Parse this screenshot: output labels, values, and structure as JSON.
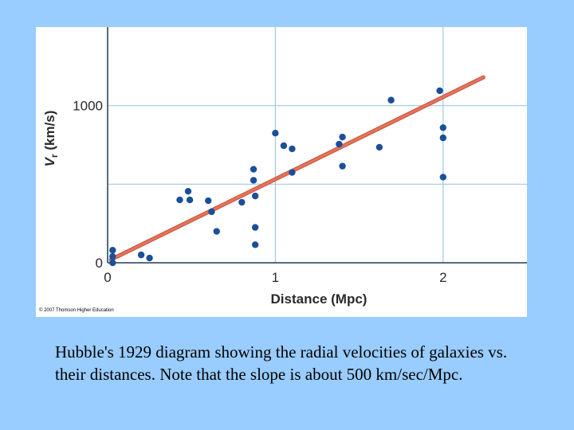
{
  "caption": "Hubble's 1929 diagram showing the radial velocities of galaxies vs. their distances.  Note that the slope is about 500 km/sec/Mpc.",
  "copyright": "© 2007 Thomson Higher Education",
  "colors": {
    "background": "#99ccff",
    "plot_bg": "#ffffff",
    "grid": "#9ec9e0",
    "axis": "#1f3b57",
    "points": "#1a4f99",
    "fit_line": "#e8735a",
    "fit_line_outline": "#c0503a"
  },
  "chart_data": {
    "type": "scatter",
    "xlabel": "Distance (Mpc)",
    "ylabel_main": "V",
    "ylabel_sub": "r",
    "ylabel_unit": " (km/s)",
    "xlim": [
      0,
      2.5
    ],
    "ylim": [
      0,
      1500
    ],
    "x_ticks": [
      0,
      1,
      2
    ],
    "x_tick_labels": [
      "0",
      "1",
      "2"
    ],
    "y_ticks": [
      0,
      1000
    ],
    "y_tick_labels": [
      "0",
      "1000"
    ],
    "grid": true,
    "points": [
      {
        "x": 0.03,
        "y": 80
      },
      {
        "x": 0.03,
        "y": 40
      },
      {
        "x": 0.03,
        "y": 0
      },
      {
        "x": 0.2,
        "y": 50
      },
      {
        "x": 0.25,
        "y": 30
      },
      {
        "x": 0.43,
        "y": 400
      },
      {
        "x": 0.48,
        "y": 455
      },
      {
        "x": 0.49,
        "y": 400
      },
      {
        "x": 0.6,
        "y": 395
      },
      {
        "x": 0.62,
        "y": 325
      },
      {
        "x": 0.65,
        "y": 200
      },
      {
        "x": 0.8,
        "y": 385
      },
      {
        "x": 0.87,
        "y": 595
      },
      {
        "x": 0.87,
        "y": 525
      },
      {
        "x": 0.88,
        "y": 425
      },
      {
        "x": 0.88,
        "y": 225
      },
      {
        "x": 0.88,
        "y": 115
      },
      {
        "x": 1.0,
        "y": 825
      },
      {
        "x": 1.05,
        "y": 745
      },
      {
        "x": 1.1,
        "y": 725
      },
      {
        "x": 1.1,
        "y": 575
      },
      {
        "x": 1.38,
        "y": 755
      },
      {
        "x": 1.4,
        "y": 800
      },
      {
        "x": 1.4,
        "y": 615
      },
      {
        "x": 1.62,
        "y": 735
      },
      {
        "x": 1.69,
        "y": 1035
      },
      {
        "x": 1.98,
        "y": 1095
      },
      {
        "x": 2.0,
        "y": 860
      },
      {
        "x": 2.0,
        "y": 795
      },
      {
        "x": 2.0,
        "y": 545
      }
    ],
    "fit_line": {
      "x": [
        0.02,
        2.24
      ],
      "y": [
        20,
        1180
      ]
    }
  }
}
